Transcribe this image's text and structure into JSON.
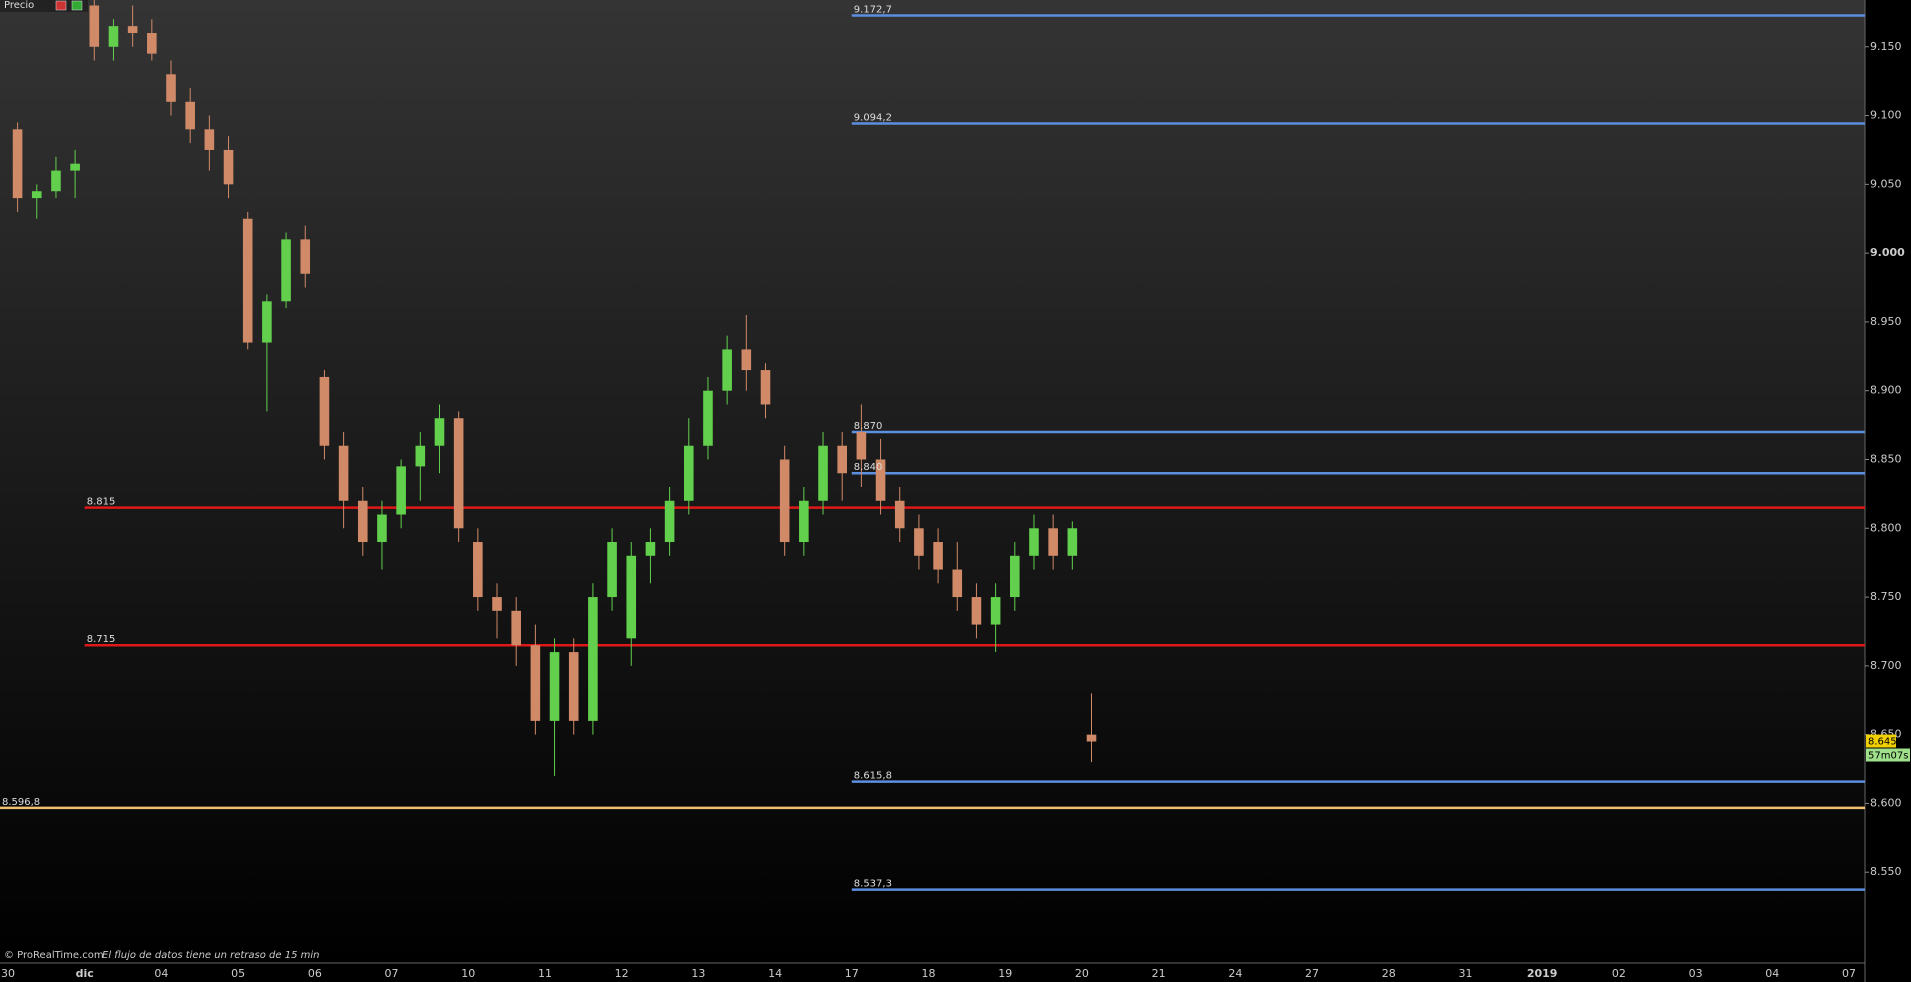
{
  "chart_data": {
    "type": "candlestick",
    "title": "Precio",
    "footer": "© ProRealTime.com",
    "footer_note": "El flujo de datos tiene un retraso de 15 min",
    "categories": [
      "30",
      null,
      null,
      null,
      "dic",
      null,
      null,
      null,
      "04",
      null,
      null,
      null,
      "05",
      null,
      null,
      null,
      "06",
      null,
      null,
      null,
      "07",
      null,
      null,
      null,
      "10",
      null,
      null,
      null,
      "11",
      null,
      null,
      null,
      "12",
      null,
      null,
      null,
      "13",
      null,
      null,
      null,
      "14",
      null,
      null,
      null,
      "17",
      null,
      null,
      null,
      "18",
      null,
      null,
      null,
      "19",
      null,
      null,
      null,
      "20",
      null,
      null,
      null,
      "21",
      null,
      null,
      null,
      "24",
      null,
      null,
      null,
      "27",
      null,
      null,
      null,
      "28",
      null,
      null,
      null,
      "31",
      null,
      null,
      null,
      "2019",
      null,
      null,
      null,
      "02",
      null,
      null,
      null,
      "03",
      null,
      null,
      null,
      "04",
      null,
      null,
      null,
      "07"
    ],
    "open": [
      9090,
      9040,
      9045,
      9060,
      9180,
      9150,
      9165,
      9160,
      9130,
      9110,
      9090,
      9075,
      9025,
      8935,
      8965,
      9010,
      8910,
      8860,
      8820,
      8790,
      8810,
      8845,
      8860,
      8880,
      8790,
      8750,
      8740,
      8715,
      8660,
      8710,
      8660,
      8750,
      8720,
      8780,
      8790,
      8820,
      8860,
      8900,
      8930,
      8915,
      8850,
      8790,
      8820,
      8860,
      8870,
      8850,
      8820,
      8800,
      8790,
      8770,
      8750,
      8730,
      8750,
      8780,
      8800,
      8780,
      8650,
      null,
      null,
      null,
      null,
      null,
      null,
      null,
      null,
      null,
      null,
      null,
      null,
      null,
      null,
      null,
      null,
      null,
      null,
      null,
      null,
      null,
      null,
      null,
      null,
      null,
      null,
      null,
      null,
      null,
      null,
      null,
      null,
      null,
      null,
      null,
      null,
      null,
      null,
      null,
      null
    ],
    "high": [
      9095,
      9050,
      9070,
      9075,
      9190,
      9170,
      9180,
      9170,
      9140,
      9120,
      9100,
      9085,
      9030,
      8970,
      9015,
      9020,
      8915,
      8870,
      8830,
      8820,
      8850,
      8870,
      8890,
      8885,
      8800,
      8760,
      8750,
      8730,
      8720,
      8720,
      8760,
      8800,
      8790,
      8800,
      8830,
      8880,
      8910,
      8940,
      8955,
      8920,
      8860,
      8830,
      8870,
      8870,
      8890,
      8865,
      8830,
      8810,
      8800,
      8790,
      8760,
      8760,
      8790,
      8810,
      8810,
      8805,
      8680,
      null,
      null,
      null,
      null,
      null,
      null,
      null,
      null,
      null,
      null,
      null,
      null,
      null,
      null,
      null,
      null,
      null,
      null,
      null,
      null,
      null,
      null,
      null,
      null,
      null,
      null,
      null,
      null,
      null,
      null,
      null,
      null,
      null,
      null,
      null,
      null,
      null,
      null,
      null,
      null
    ],
    "low": [
      9030,
      9025,
      9040,
      9040,
      9140,
      9140,
      9150,
      9140,
      9100,
      9080,
      9060,
      9040,
      8930,
      8885,
      8960,
      8975,
      8850,
      8800,
      8780,
      8770,
      8800,
      8820,
      8840,
      8790,
      8740,
      8720,
      8700,
      8650,
      8620,
      8650,
      8650,
      8740,
      8700,
      8760,
      8780,
      8810,
      8850,
      8890,
      8900,
      8880,
      8780,
      8780,
      8810,
      8820,
      8830,
      8810,
      8790,
      8770,
      8760,
      8740,
      8720,
      8710,
      8740,
      8770,
      8770,
      8770,
      8630,
      null,
      null,
      null,
      null,
      null,
      null,
      null,
      null,
      null,
      null,
      null,
      null,
      null,
      null,
      null,
      null,
      null,
      null,
      null,
      null,
      null,
      null,
      null,
      null,
      null,
      null,
      null,
      null,
      null,
      null,
      null,
      null,
      null,
      null,
      null,
      null,
      null,
      null,
      null,
      null
    ],
    "close": [
      9040,
      9045,
      9060,
      9065,
      9150,
      9165,
      9160,
      9145,
      9110,
      9090,
      9075,
      9050,
      8935,
      8965,
      9010,
      8985,
      8860,
      8820,
      8790,
      8810,
      8845,
      8860,
      8880,
      8800,
      8750,
      8740,
      8715,
      8660,
      8710,
      8660,
      8750,
      8790,
      8780,
      8790,
      8820,
      8860,
      8900,
      8930,
      8915,
      8890,
      8790,
      8820,
      8860,
      8840,
      8850,
      8820,
      8800,
      8780,
      8770,
      8750,
      8730,
      8750,
      8780,
      8800,
      8780,
      8800,
      8645,
      null,
      null,
      null,
      null,
      null,
      null,
      null,
      null,
      null,
      null,
      null,
      null,
      null,
      null,
      null,
      null,
      null,
      null,
      null,
      null,
      null,
      null,
      null,
      null,
      null,
      null,
      null,
      null,
      null,
      null,
      null,
      null,
      null,
      null,
      null,
      null,
      null,
      null,
      null,
      null
    ],
    "up_color": "#62d04c",
    "down_color": "#d08a68",
    "ylim": [
      8484,
      9184
    ],
    "yticks": [
      {
        "value": 8550,
        "label": "8.550"
      },
      {
        "value": 8600,
        "label": "8.600"
      },
      {
        "value": 8650,
        "label": "8.650"
      },
      {
        "value": 8700,
        "label": "8.700"
      },
      {
        "value": 8750,
        "label": "8.750"
      },
      {
        "value": 8800,
        "label": "8.800"
      },
      {
        "value": 8850,
        "label": "8.850"
      },
      {
        "value": 8900,
        "label": "8.900"
      },
      {
        "value": 8950,
        "label": "8.950"
      },
      {
        "value": 9000,
        "label": "9.000"
      },
      {
        "value": 9050,
        "label": "9.050"
      },
      {
        "value": 9100,
        "label": "9.100"
      },
      {
        "value": 9150,
        "label": "9.150"
      }
    ],
    "levels": [
      {
        "value": 9172.7,
        "label": "9.172,7",
        "color": "#5b8fe0"
      },
      {
        "value": 9094.2,
        "label": "9.094,2",
        "color": "#5b8fe0"
      },
      {
        "value": 8870,
        "label": "8.870",
        "color": "#5b8fe0"
      },
      {
        "value": 8840,
        "label": "8.840",
        "color": "#5b8fe0"
      },
      {
        "value": 8615.8,
        "label": "8.615,8",
        "color": "#5b8fe0"
      },
      {
        "value": 8537.3,
        "label": "8.537,3",
        "color": "#5b8fe0"
      },
      {
        "value": 8815,
        "label": "8.815",
        "color": "#e01818"
      },
      {
        "value": 8715,
        "label": "8.715",
        "color": "#e01818"
      },
      {
        "value": 8596.8,
        "label": "8.596,8",
        "color": "#f0c070"
      }
    ],
    "last_price": {
      "value": 8645,
      "label": "8.645"
    },
    "countdown": "57m07s"
  }
}
